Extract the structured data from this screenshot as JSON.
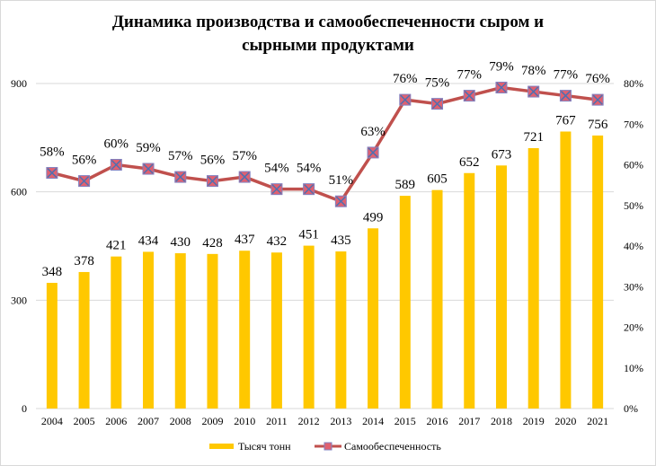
{
  "chart_data": {
    "type": "bar+line",
    "title_line1": "Динамика производства и самообеспеченности сыром и",
    "title_line2": "сырными продуктами",
    "categories": [
      "2004",
      "2005",
      "2006",
      "2007",
      "2008",
      "2009",
      "2010",
      "2011",
      "2012",
      "2013",
      "2014",
      "2015",
      "2016",
      "2017",
      "2018",
      "2019",
      "2020",
      "2021"
    ],
    "series": [
      {
        "name": "Тысяч тонн",
        "type": "bar",
        "axis": "left",
        "color": "#FFC800",
        "values": [
          348,
          378,
          421,
          434,
          430,
          428,
          437,
          432,
          451,
          435,
          499,
          589,
          605,
          652,
          673,
          721,
          767,
          756
        ]
      },
      {
        "name": "Самообеспеченность",
        "type": "line",
        "axis": "right",
        "color": "#C0504D",
        "marker_color": "#E06070",
        "marker_cross_color": "#4F6FB0",
        "values": [
          58,
          56,
          60,
          59,
          57,
          56,
          57,
          54,
          54,
          51,
          63,
          76,
          75,
          77,
          79,
          78,
          77,
          76
        ]
      }
    ],
    "y_left": {
      "ylim": [
        0,
        900
      ],
      "ticks": [
        "0",
        "300",
        "600",
        "900"
      ]
    },
    "y_right": {
      "ylim": [
        0,
        80
      ],
      "ticks": [
        "0%",
        "10%",
        "20%",
        "30%",
        "40%",
        "50%",
        "60%",
        "70%",
        "80%"
      ]
    },
    "grid": true,
    "legend": "bottom"
  }
}
